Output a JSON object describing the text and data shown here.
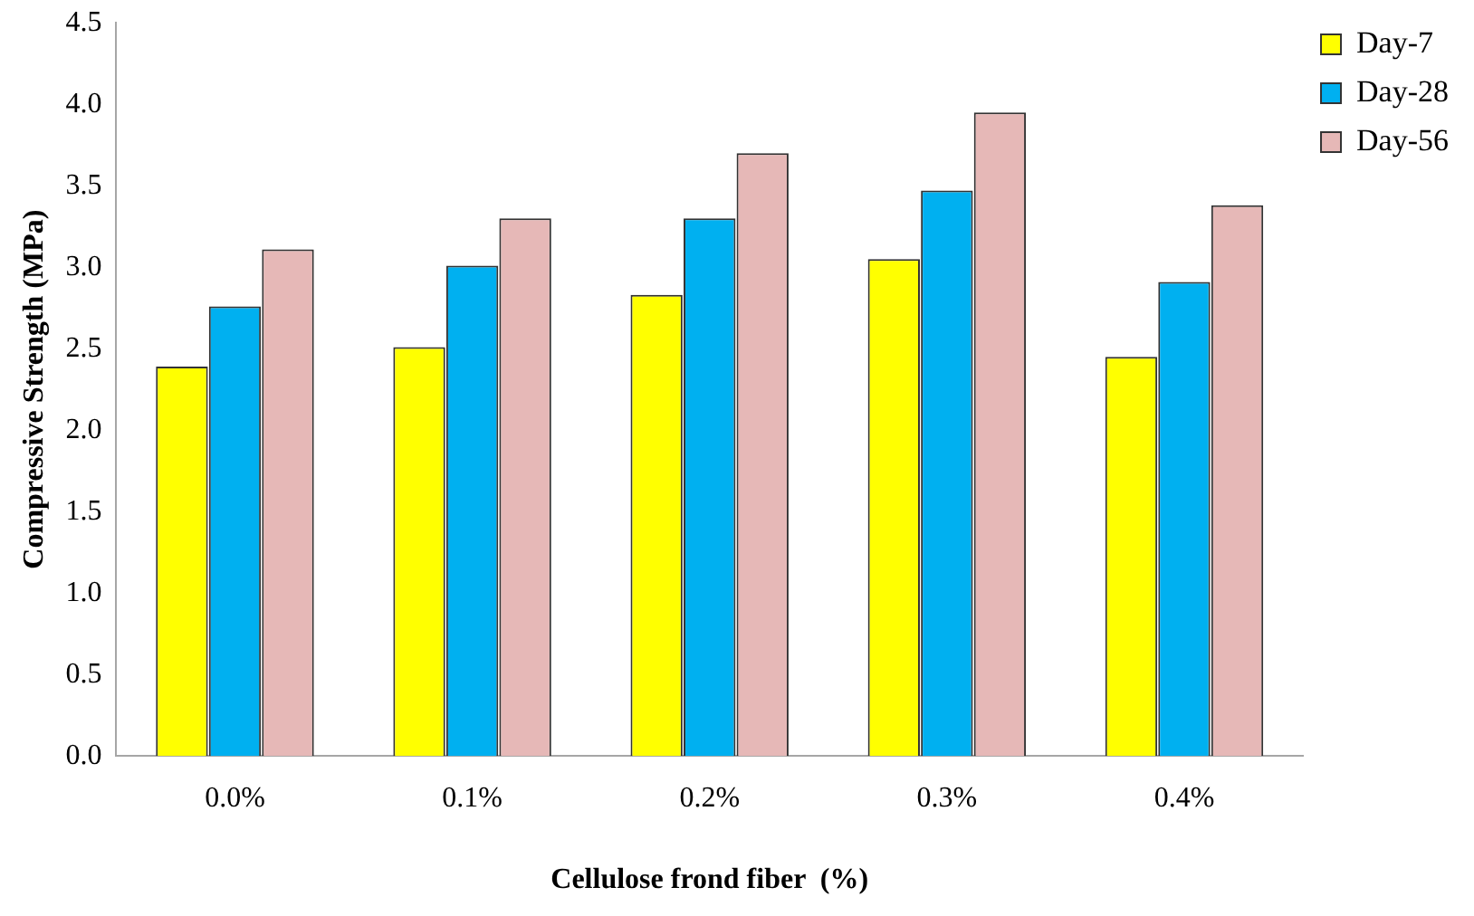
{
  "chart_data": {
    "type": "bar",
    "xlabel": "Cellulose frond fiber  (%)",
    "ylabel": "Compressive Strength (MPa)",
    "categories": [
      "0.0%",
      "0.1%",
      "0.2%",
      "0.3%",
      "0.4%"
    ],
    "series": [
      {
        "name": "Day-7",
        "color": "#ffff00",
        "values": [
          2.39,
          2.51,
          2.83,
          3.05,
          2.45
        ]
      },
      {
        "name": "Day-28",
        "color": "#00b0f0",
        "values": [
          2.76,
          3.01,
          3.3,
          3.47,
          2.91
        ]
      },
      {
        "name": "Day-56",
        "color": "#e6b8b7",
        "values": [
          3.11,
          3.3,
          3.7,
          3.95,
          3.38
        ]
      }
    ],
    "ylim": [
      0,
      4.5
    ],
    "yticks": [
      {
        "value": 0,
        "label": "0.0"
      },
      0.5,
      {
        "value": 1,
        "label": "1.0"
      },
      1.5,
      {
        "value": 2,
        "label": "2.0"
      },
      2.5,
      {
        "value": 3,
        "label": "3.0"
      },
      3.5,
      {
        "value": 4,
        "label": "4.0"
      },
      4.5
    ],
    "grid": false,
    "legend": "top right"
  }
}
